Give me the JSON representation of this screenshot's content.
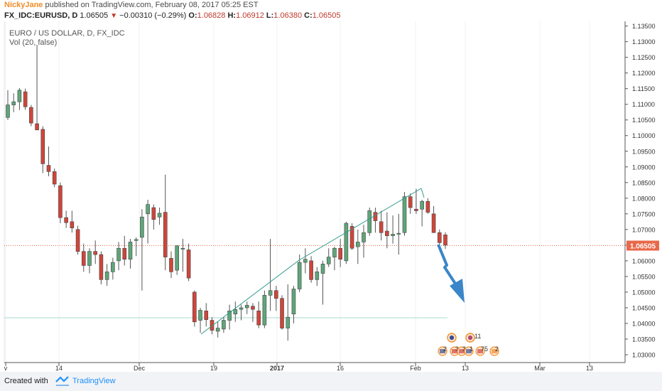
{
  "header": {
    "author": "NickyJane",
    "published_text": "published on TradingView.com, February 08, 2017 05:25 EST",
    "symbol": "FX_IDC:EURUSD, D",
    "price": "1.06505",
    "change": "−0.00310 (−0.29%)",
    "open_label": "O:",
    "open": "1.06828",
    "high_label": "H:",
    "high": "1.06912",
    "low_label": "L:",
    "low": "1.06380",
    "close_label": "C:",
    "close": "1.06505"
  },
  "legend": {
    "title": "EURO / US DOLLAR, D, FX_IDC",
    "volume": "Vol (20, false)"
  },
  "footer": {
    "created_with": "Created with",
    "brand": "TradingView"
  },
  "colors": {
    "up": "#5ea67a",
    "down": "#d0453a",
    "trendline": "#2e9a8a",
    "arrow": "#3a86c8",
    "price_line": "#e8684a",
    "price_tag": "#e8684a"
  },
  "events": {
    "row1": [
      "",
      "11"
    ],
    "row2": [
      "2",
      "3",
      "3",
      "1",
      "75",
      "2"
    ]
  },
  "chart_data": {
    "type": "candlestick",
    "title": "EURO / US DOLLAR, D, FX_IDC",
    "ylim": [
      1.0275,
      1.1365
    ],
    "y_ticks": [
      "1.03000",
      "1.03500",
      "1.04000",
      "1.04500",
      "1.05000",
      "1.05500",
      "1.06000",
      "1.06500",
      "1.07000",
      "1.07500",
      "1.08000",
      "1.08500",
      "1.09000",
      "1.09500",
      "1.10000",
      "1.10500",
      "1.11000",
      "1.11500",
      "1.12000",
      "1.12500",
      "1.13000",
      "1.13500"
    ],
    "x_ticks": [
      "v",
      "14",
      "Dec",
      "19",
      "2017",
      "16",
      "Feb",
      "13",
      "Mar",
      "13"
    ],
    "current_price_label": "1.06505",
    "candles": [
      [
        1.1058,
        1.1145,
        1.105,
        1.1098
      ],
      [
        1.1098,
        1.1135,
        1.1075,
        1.1108
      ],
      [
        1.1108,
        1.1152,
        1.1082,
        1.1145
      ],
      [
        1.114,
        1.115,
        1.1082,
        1.1092
      ],
      [
        1.109,
        1.1098,
        1.103,
        1.104
      ],
      [
        1.1038,
        1.129,
        1.102,
        1.1018
      ],
      [
        1.102,
        1.103,
        1.088,
        1.091
      ],
      [
        1.0905,
        1.0965,
        1.087,
        1.0885
      ],
      [
        1.0885,
        1.0895,
        1.0835,
        1.0845
      ],
      [
        1.084,
        1.085,
        1.072,
        1.0738
      ],
      [
        1.0738,
        1.076,
        1.0705,
        1.0722
      ],
      [
        1.0725,
        1.076,
        1.069,
        1.0705
      ],
      [
        1.07,
        1.0712,
        1.062,
        1.063
      ],
      [
        1.063,
        1.0655,
        1.0565,
        1.0585
      ],
      [
        1.0585,
        1.064,
        1.056,
        1.063
      ],
      [
        1.063,
        1.0665,
        1.059,
        1.062
      ],
      [
        1.062,
        1.063,
        1.0525,
        1.054
      ],
      [
        1.054,
        1.059,
        1.052,
        1.0565
      ],
      [
        1.0565,
        1.061,
        1.054,
        1.0595
      ],
      [
        1.06,
        1.066,
        1.057,
        1.064
      ],
      [
        1.064,
        1.068,
        1.0585,
        1.0605
      ],
      [
        1.0605,
        1.067,
        1.0575,
        1.066
      ],
      [
        1.0665,
        1.0675,
        1.0615,
        1.0668
      ],
      [
        1.0675,
        1.0765,
        1.0505,
        1.074
      ],
      [
        1.075,
        1.0795,
        1.0655,
        1.078
      ],
      [
        1.077,
        1.078,
        1.07,
        1.0732
      ],
      [
        1.074,
        1.077,
        1.0715,
        1.0752
      ],
      [
        1.0755,
        1.0875,
        1.057,
        1.0612
      ],
      [
        1.0608,
        1.063,
        1.0545,
        1.0565
      ],
      [
        1.057,
        1.065,
        1.0555,
        1.0648
      ],
      [
        1.064,
        1.067,
        1.0565,
        1.064
      ],
      [
        1.0635,
        1.0655,
        1.0535,
        1.0545
      ],
      [
        1.05,
        1.0505,
        1.039,
        1.0405
      ],
      [
        1.041,
        1.045,
        1.037,
        1.0442
      ],
      [
        1.044,
        1.0465,
        1.039,
        1.0412
      ],
      [
        1.041,
        1.042,
        1.0365,
        1.0378
      ],
      [
        1.0375,
        1.0405,
        1.0355,
        1.0385
      ],
      [
        1.0382,
        1.042,
        1.037,
        1.041
      ],
      [
        1.041,
        1.046,
        1.038,
        1.044
      ],
      [
        1.043,
        1.047,
        1.0405,
        1.0445
      ],
      [
        1.0445,
        1.046,
        1.041,
        1.045
      ],
      [
        1.045,
        1.047,
        1.043,
        1.0458
      ],
      [
        1.0455,
        1.0465,
        1.0405,
        1.0445
      ],
      [
        1.044,
        1.047,
        1.0385,
        1.0395
      ],
      [
        1.0395,
        1.0505,
        1.0385,
        1.049
      ],
      [
        1.049,
        1.067,
        1.044,
        1.0505
      ],
      [
        1.0505,
        1.052,
        1.044,
        1.048
      ],
      [
        1.048,
        1.049,
        1.038,
        1.0385
      ],
      [
        1.0385,
        1.0525,
        1.0345,
        1.042
      ],
      [
        1.043,
        1.052,
        1.04,
        1.051
      ],
      [
        1.051,
        1.062,
        1.05,
        1.0595
      ],
      [
        1.0595,
        1.064,
        1.056,
        1.0605
      ],
      [
        1.06,
        1.0615,
        1.053,
        1.054
      ],
      [
        1.054,
        1.058,
        1.052,
        1.0565
      ],
      [
        1.056,
        1.06,
        1.046,
        1.059
      ],
      [
        1.059,
        1.064,
        1.058,
        1.0612
      ],
      [
        1.0612,
        1.0645,
        1.057,
        1.064
      ],
      [
        1.064,
        1.067,
        1.058,
        1.0605
      ],
      [
        1.06,
        1.0725,
        1.059,
        1.072
      ],
      [
        1.071,
        1.072,
        1.0635,
        1.064
      ],
      [
        1.0645,
        1.07,
        1.059,
        1.066
      ],
      [
        1.066,
        1.0715,
        1.061,
        1.069
      ],
      [
        1.069,
        1.077,
        1.068,
        1.076
      ],
      [
        1.0755,
        1.077,
        1.069,
        1.0728
      ],
      [
        1.0725,
        1.076,
        1.0665,
        1.069
      ],
      [
        1.0695,
        1.0755,
        1.064,
        1.068
      ],
      [
        1.068,
        1.0745,
        1.0655,
        1.0685
      ],
      [
        1.0685,
        1.075,
        1.062,
        1.0688
      ],
      [
        1.069,
        1.082,
        1.068,
        1.0805
      ],
      [
        1.0805,
        1.0815,
        1.075,
        1.077
      ],
      [
        1.0765,
        1.083,
        1.075,
        1.076
      ],
      [
        1.0765,
        1.0795,
        1.071,
        1.079
      ],
      [
        1.079,
        1.08,
        1.075,
        1.0755
      ],
      [
        1.075,
        1.0775,
        1.069,
        1.069
      ],
      [
        1.069,
        1.07,
        1.0645,
        1.0658
      ],
      [
        1.0683,
        1.0691,
        1.0638,
        1.065
      ]
    ]
  }
}
